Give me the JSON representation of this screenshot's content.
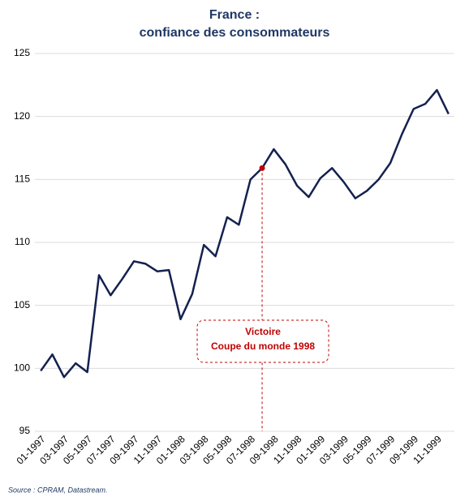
{
  "chart_data": {
    "type": "line",
    "title": "France :",
    "subtitle": "confiance des consommateurs",
    "categories": [
      "01-1997",
      null,
      "03-1997",
      null,
      "05-1997",
      null,
      "07-1997",
      null,
      "09-1997",
      null,
      "11-1997",
      null,
      "01-1998",
      null,
      "03-1998",
      null,
      "05-1998",
      null,
      "07-1998",
      null,
      "09-1998",
      null,
      "11-1998",
      null,
      "01-1999",
      null,
      "03-1999",
      null,
      "05-1999",
      null,
      "07-1999",
      null,
      "09-1999",
      null,
      "11-1999",
      null
    ],
    "values": [
      99.8,
      101.1,
      99.3,
      100.4,
      99.7,
      107.4,
      105.8,
      107.1,
      108.5,
      108.3,
      107.7,
      107.8,
      103.9,
      105.9,
      109.8,
      108.9,
      112.0,
      111.4,
      115.0,
      115.9,
      117.4,
      116.2,
      114.5,
      113.6,
      115.1,
      115.9,
      114.8,
      113.5,
      114.1,
      115.0,
      116.3,
      118.6,
      120.6,
      121.0,
      122.1,
      120.2
    ],
    "color": "#14214f",
    "ylim": [
      95,
      125
    ],
    "yticks": [
      95,
      100,
      105,
      110,
      115,
      120,
      125
    ],
    "grid": true,
    "highlight": 19,
    "highlight_color": "#c00000",
    "annotation": [
      "Victoire",
      "Coupe du monde 1998"
    ],
    "source": "Source : CPRAM, Datastream."
  }
}
